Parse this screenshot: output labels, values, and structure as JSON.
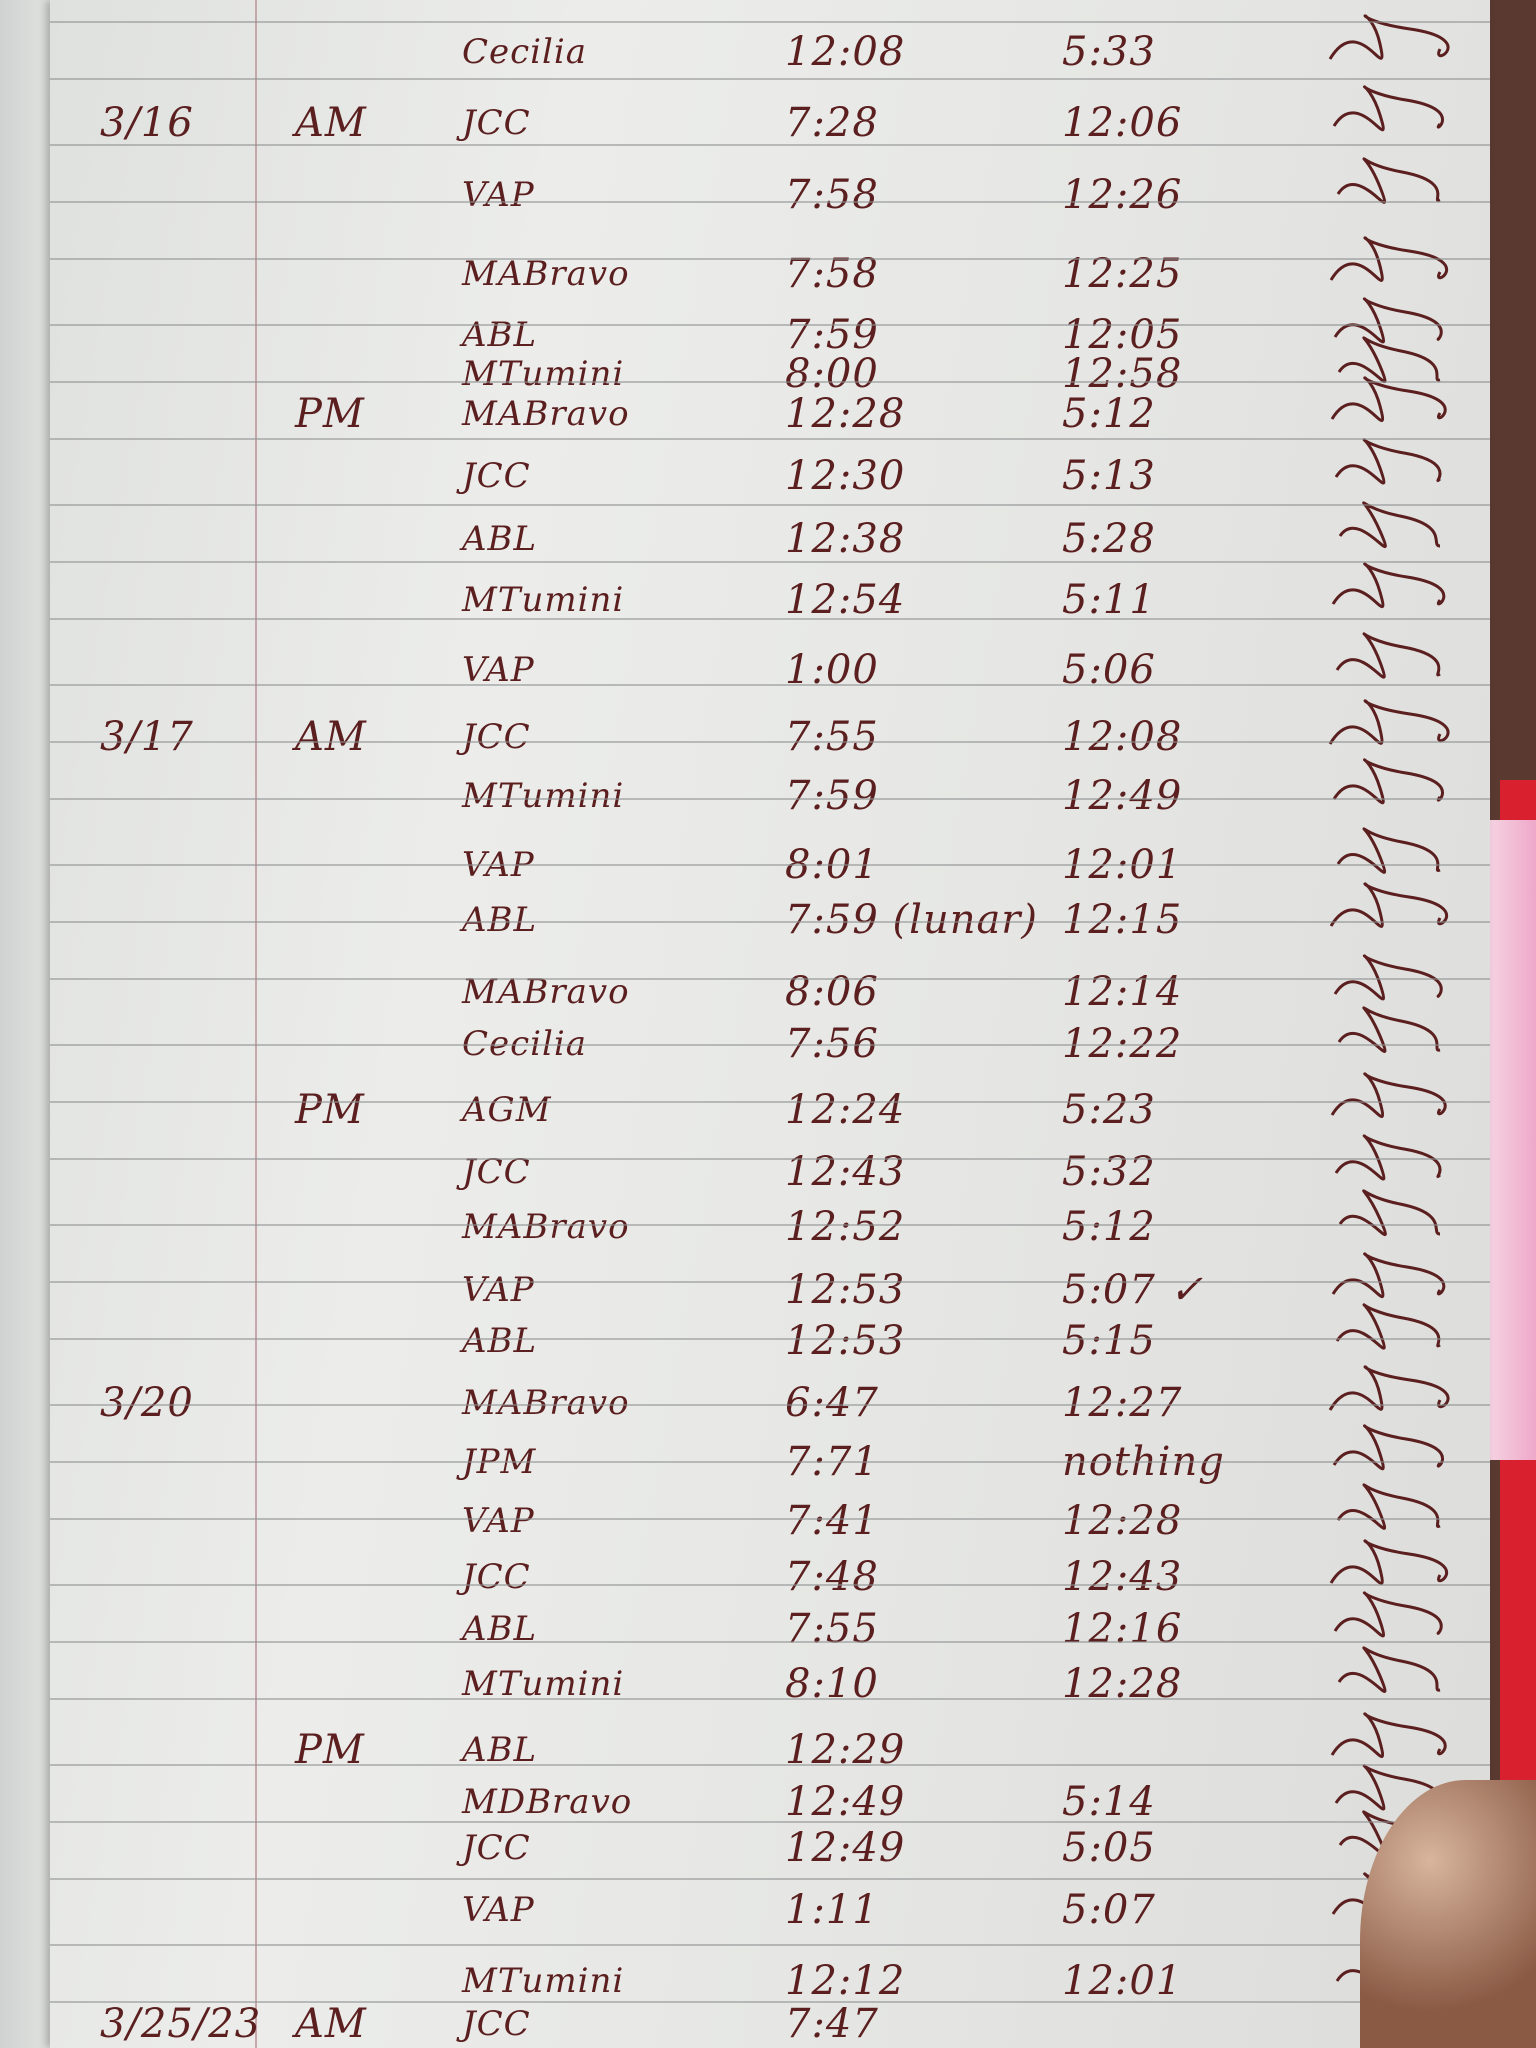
{
  "colors": {
    "ink": "#5b1f1f",
    "paper": "#e6e7e4",
    "rule": "#8d8f90",
    "tab": "#d8202e"
  },
  "rows": [
    {
      "date": "",
      "session": "",
      "name": "Cecilia",
      "in": "12:08",
      "out": "5:33"
    },
    {
      "date": "3/16",
      "session": "AM",
      "name": "JCC",
      "in": "7:28",
      "out": "12:06"
    },
    {
      "date": "",
      "session": "",
      "name": "VAP",
      "in": "7:58",
      "out": "12:26"
    },
    {
      "date": "",
      "session": "",
      "name": "MABravo",
      "in": "7:58",
      "out": "12:25"
    },
    {
      "date": "",
      "session": "",
      "name": "ABL",
      "in": "7:59",
      "out": "12:05"
    },
    {
      "date": "",
      "session": "",
      "name": "MTumini",
      "in": "8:00",
      "out": "12:58"
    },
    {
      "date": "",
      "session": "PM",
      "name": "MABravo",
      "in": "12:28",
      "out": "5:12"
    },
    {
      "date": "",
      "session": "",
      "name": "JCC",
      "in": "12:30",
      "out": "5:13"
    },
    {
      "date": "",
      "session": "",
      "name": "ABL",
      "in": "12:38",
      "out": "5:28"
    },
    {
      "date": "",
      "session": "",
      "name": "MTumini",
      "in": "12:54",
      "out": "5:11"
    },
    {
      "date": "",
      "session": "",
      "name": "VAP",
      "in": "1:00",
      "out": "5:06"
    },
    {
      "date": "3/17",
      "session": "AM",
      "name": "JCC",
      "in": "7:55",
      "out": "12:08"
    },
    {
      "date": "",
      "session": "",
      "name": "MTumini",
      "in": "7:59",
      "out": "12:49"
    },
    {
      "date": "",
      "session": "",
      "name": "VAP",
      "in": "8:01",
      "out": "12:01"
    },
    {
      "date": "",
      "session": "",
      "name": "ABL",
      "in": "7:59 (lunar)",
      "out": "12:15"
    },
    {
      "date": "",
      "session": "",
      "name": "MABravo",
      "in": "8:06",
      "out": "12:14"
    },
    {
      "date": "",
      "session": "",
      "name": "Cecilia",
      "in": "7:56",
      "out": "12:22"
    },
    {
      "date": "",
      "session": "PM",
      "name": "AGM",
      "in": "12:24",
      "out": "5:23"
    },
    {
      "date": "",
      "session": "",
      "name": "JCC",
      "in": "12:43",
      "out": "5:32"
    },
    {
      "date": "",
      "session": "",
      "name": "MABravo",
      "in": "12:52",
      "out": "5:12"
    },
    {
      "date": "",
      "session": "",
      "name": "VAP",
      "in": "12:53",
      "out": "5:07 ✓"
    },
    {
      "date": "",
      "session": "",
      "name": "ABL",
      "in": "12:53",
      "out": "5:15"
    },
    {
      "date": "3/20",
      "session": "",
      "name": "MABravo",
      "in": "6:47",
      "out": "12:27"
    },
    {
      "date": "",
      "session": "",
      "name": "JPM",
      "in": "7:71",
      "out": "nothing"
    },
    {
      "date": "",
      "session": "",
      "name": "VAP",
      "in": "7:41",
      "out": "12:28"
    },
    {
      "date": "",
      "session": "",
      "name": "JCC",
      "in": "7:48",
      "out": "12:43"
    },
    {
      "date": "",
      "session": "",
      "name": "ABL",
      "in": "7:55",
      "out": "12:16"
    },
    {
      "date": "",
      "session": "",
      "name": "MTumini",
      "in": "8:10",
      "out": "12:28"
    },
    {
      "date": "",
      "session": "PM",
      "name": "ABL",
      "in": "12:29",
      "out": ""
    },
    {
      "date": "",
      "session": "",
      "name": "MDBravo",
      "in": "12:49",
      "out": "5:14"
    },
    {
      "date": "",
      "session": "",
      "name": "JCC",
      "in": "12:49",
      "out": "5:05"
    },
    {
      "date": "",
      "session": "",
      "name": "VAP",
      "in": "1:11",
      "out": "5:07"
    },
    {
      "date": "",
      "session": "",
      "name": "MTumini",
      "in": "12:12",
      "out": "12:01"
    },
    {
      "date": "3/25/23",
      "session": "AM",
      "name": "JCC",
      "in": "7:47",
      "out": ""
    }
  ]
}
